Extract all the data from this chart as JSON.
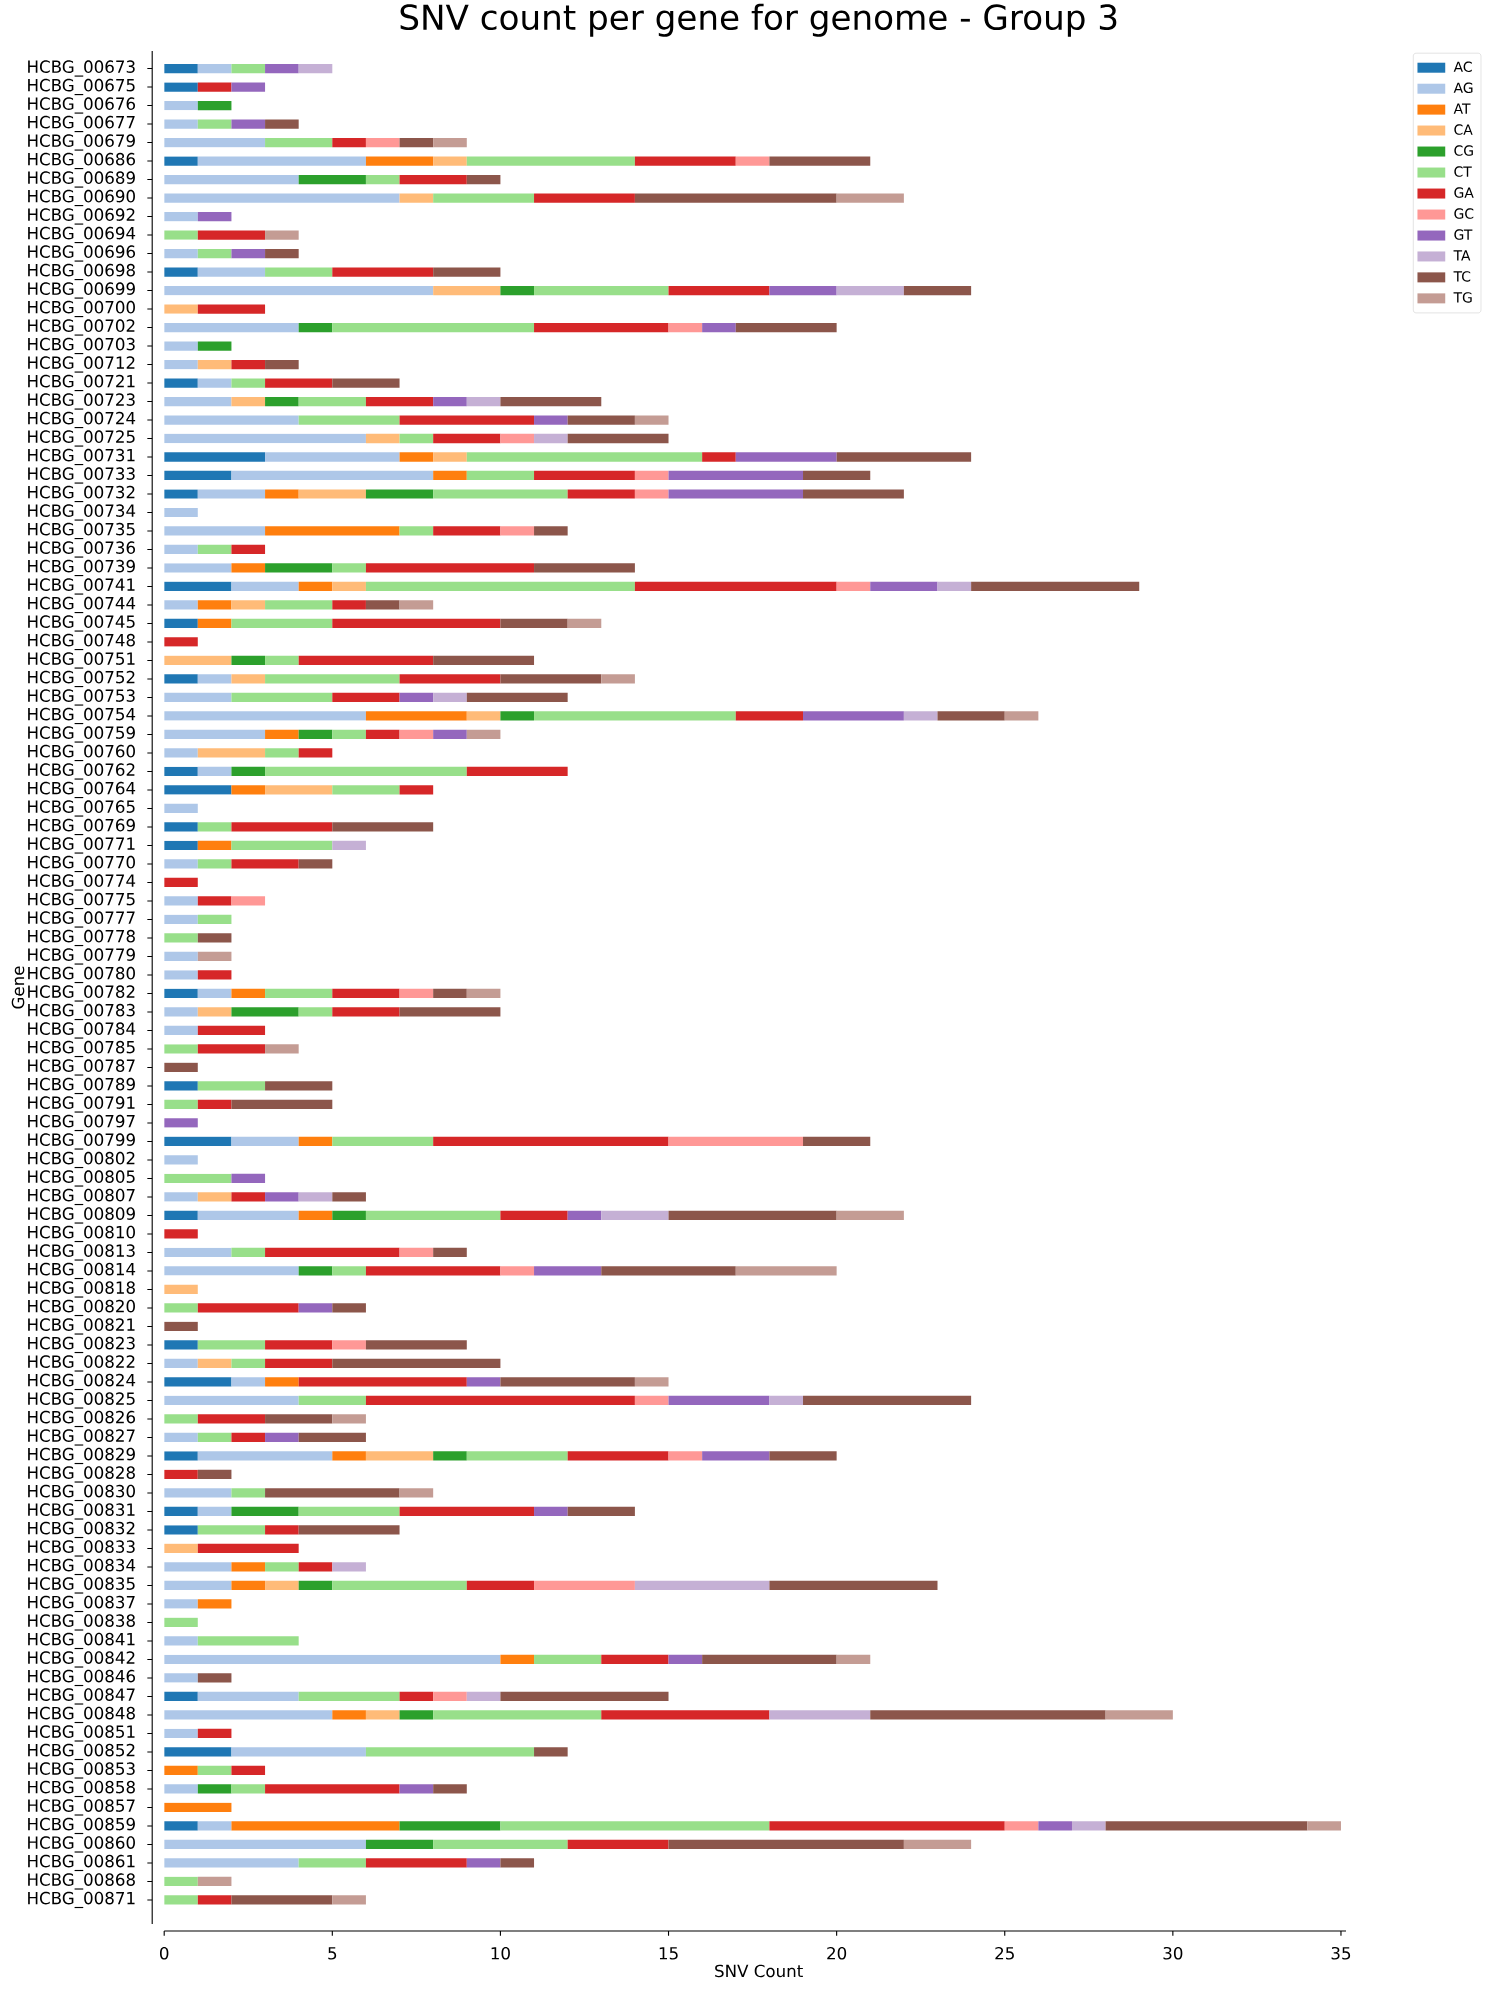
{
  "chart_data": {
    "type": "bar",
    "orientation": "horizontal",
    "stacked": true,
    "title": "SNV count per gene for genome - Group 3",
    "xlabel": "SNV Count",
    "ylabel": "Gene",
    "categories": [
      "HCBG_00673",
      "HCBG_00675",
      "HCBG_00676",
      "HCBG_00677",
      "HCBG_00679",
      "HCBG_00686",
      "HCBG_00689",
      "HCBG_00690",
      "HCBG_00692",
      "HCBG_00694",
      "HCBG_00696",
      "HCBG_00698",
      "HCBG_00699",
      "HCBG_00700",
      "HCBG_00702",
      "HCBG_00703",
      "HCBG_00712",
      "HCBG_00721",
      "HCBG_00723",
      "HCBG_00724",
      "HCBG_00725",
      "HCBG_00731",
      "HCBG_00733",
      "HCBG_00732",
      "HCBG_00734",
      "HCBG_00735",
      "HCBG_00736",
      "HCBG_00739",
      "HCBG_00741",
      "HCBG_00744",
      "HCBG_00745",
      "HCBG_00748",
      "HCBG_00751",
      "HCBG_00752",
      "HCBG_00753",
      "HCBG_00754",
      "HCBG_00759",
      "HCBG_00760",
      "HCBG_00762",
      "HCBG_00764",
      "HCBG_00765",
      "HCBG_00769",
      "HCBG_00771",
      "HCBG_00770",
      "HCBG_00774",
      "HCBG_00775",
      "HCBG_00777",
      "HCBG_00778",
      "HCBG_00779",
      "HCBG_00780",
      "HCBG_00782",
      "HCBG_00783",
      "HCBG_00784",
      "HCBG_00785",
      "HCBG_00787",
      "HCBG_00789",
      "HCBG_00791",
      "HCBG_00797",
      "HCBG_00799",
      "HCBG_00802",
      "HCBG_00805",
      "HCBG_00807",
      "HCBG_00809",
      "HCBG_00810",
      "HCBG_00813",
      "HCBG_00814",
      "HCBG_00818",
      "HCBG_00820",
      "HCBG_00821",
      "HCBG_00823",
      "HCBG_00822",
      "HCBG_00824",
      "HCBG_00825",
      "HCBG_00826",
      "HCBG_00827",
      "HCBG_00829",
      "HCBG_00828",
      "HCBG_00830",
      "HCBG_00831",
      "HCBG_00832",
      "HCBG_00833",
      "HCBG_00834",
      "HCBG_00835",
      "HCBG_00837",
      "HCBG_00838",
      "HCBG_00841",
      "HCBG_00842",
      "HCBG_00846",
      "HCBG_00847",
      "HCBG_00848",
      "HCBG_00851",
      "HCBG_00852",
      "HCBG_00853",
      "HCBG_00858",
      "HCBG_00857",
      "HCBG_00859",
      "HCBG_00860",
      "HCBG_00861",
      "HCBG_00868",
      "HCBG_00871"
    ],
    "series": [
      {
        "name": "AC",
        "color": "#1f77b4",
        "values": [
          1,
          1,
          0,
          0,
          0,
          1,
          0,
          0,
          0,
          0,
          0,
          1,
          0,
          0,
          0,
          0,
          0,
          1,
          0,
          0,
          0,
          3,
          2,
          1,
          0,
          0,
          0,
          0,
          2,
          0,
          1,
          0,
          0,
          1,
          0,
          0,
          0,
          0,
          1,
          2,
          0,
          1,
          1,
          0,
          0,
          0,
          0,
          0,
          0,
          0,
          1,
          0,
          0,
          0,
          0,
          1,
          0,
          0,
          2,
          0,
          0,
          0,
          1,
          0,
          0,
          0,
          0,
          0,
          0,
          1,
          0,
          2,
          0,
          0,
          0,
          1,
          0,
          0,
          1,
          1,
          0,
          0,
          0,
          0,
          0,
          0,
          0,
          0,
          1,
          0,
          0,
          2,
          0,
          0,
          0,
          1,
          0,
          0,
          0,
          0
        ]
      },
      {
        "name": "AG",
        "color": "#aec7e8",
        "values": [
          1,
          0,
          1,
          1,
          3,
          5,
          4,
          7,
          1,
          0,
          1,
          2,
          8,
          0,
          4,
          1,
          1,
          1,
          2,
          4,
          6,
          4,
          6,
          2,
          1,
          3,
          1,
          2,
          2,
          1,
          0,
          0,
          0,
          1,
          2,
          6,
          3,
          1,
          1,
          0,
          1,
          0,
          0,
          1,
          0,
          1,
          1,
          0,
          1,
          1,
          1,
          1,
          1,
          0,
          0,
          0,
          0,
          0,
          2,
          1,
          0,
          1,
          3,
          0,
          2,
          4,
          0,
          0,
          0,
          0,
          1,
          1,
          4,
          0,
          1,
          4,
          0,
          2,
          1,
          0,
          0,
          2,
          2,
          1,
          0,
          1,
          10,
          1,
          3,
          5,
          1,
          4,
          0,
          1,
          0,
          1,
          6,
          4,
          0,
          0
        ]
      },
      {
        "name": "AT",
        "color": "#ff7f0e",
        "values": [
          0,
          0,
          0,
          0,
          0,
          2,
          0,
          0,
          0,
          0,
          0,
          0,
          0,
          0,
          0,
          0,
          0,
          0,
          0,
          0,
          0,
          1,
          1,
          1,
          0,
          4,
          0,
          1,
          1,
          1,
          1,
          0,
          0,
          0,
          0,
          3,
          1,
          0,
          0,
          1,
          0,
          0,
          1,
          0,
          0,
          0,
          0,
          0,
          0,
          0,
          1,
          0,
          0,
          0,
          0,
          0,
          0,
          0,
          1,
          0,
          0,
          0,
          1,
          0,
          0,
          0,
          0,
          0,
          0,
          0,
          0,
          1,
          0,
          0,
          0,
          1,
          0,
          0,
          0,
          0,
          0,
          1,
          1,
          1,
          0,
          0,
          1,
          0,
          0,
          1,
          0,
          0,
          1,
          0,
          2,
          5,
          0,
          0,
          0,
          0
        ]
      },
      {
        "name": "CA",
        "color": "#ffbb78",
        "values": [
          0,
          0,
          0,
          0,
          0,
          1,
          0,
          1,
          0,
          0,
          0,
          0,
          2,
          1,
          0,
          0,
          1,
          0,
          1,
          0,
          1,
          1,
          0,
          2,
          0,
          0,
          0,
          0,
          1,
          1,
          0,
          0,
          2,
          1,
          0,
          1,
          0,
          2,
          0,
          2,
          0,
          0,
          0,
          0,
          0,
          0,
          0,
          0,
          0,
          0,
          0,
          1,
          0,
          0,
          0,
          0,
          0,
          0,
          0,
          0,
          0,
          1,
          0,
          0,
          0,
          0,
          1,
          0,
          0,
          0,
          1,
          0,
          0,
          0,
          0,
          2,
          0,
          0,
          0,
          0,
          1,
          0,
          1,
          0,
          0,
          0,
          0,
          0,
          0,
          1,
          0,
          0,
          0,
          0,
          0,
          0,
          0,
          0,
          0,
          0
        ]
      },
      {
        "name": "CG",
        "color": "#2ca02c",
        "values": [
          0,
          0,
          1,
          0,
          0,
          0,
          2,
          0,
          0,
          0,
          0,
          0,
          1,
          0,
          1,
          1,
          0,
          0,
          1,
          0,
          0,
          0,
          0,
          2,
          0,
          0,
          0,
          2,
          0,
          0,
          0,
          0,
          1,
          0,
          0,
          1,
          1,
          0,
          1,
          0,
          0,
          0,
          0,
          0,
          0,
          0,
          0,
          0,
          0,
          0,
          0,
          2,
          0,
          0,
          0,
          0,
          0,
          0,
          0,
          0,
          0,
          0,
          1,
          0,
          0,
          1,
          0,
          0,
          0,
          0,
          0,
          0,
          0,
          0,
          0,
          1,
          0,
          0,
          2,
          0,
          0,
          0,
          1,
          0,
          0,
          0,
          0,
          0,
          0,
          1,
          0,
          0,
          0,
          1,
          0,
          3,
          2,
          0,
          0,
          0
        ]
      },
      {
        "name": "CT",
        "color": "#98df8a",
        "values": [
          1,
          0,
          0,
          1,
          2,
          5,
          1,
          3,
          0,
          1,
          1,
          2,
          4,
          0,
          6,
          0,
          0,
          1,
          2,
          3,
          1,
          7,
          2,
          4,
          0,
          1,
          1,
          1,
          8,
          2,
          3,
          0,
          1,
          4,
          3,
          6,
          1,
          1,
          6,
          2,
          0,
          1,
          3,
          1,
          0,
          0,
          1,
          1,
          0,
          0,
          2,
          1,
          0,
          1,
          0,
          2,
          1,
          0,
          3,
          0,
          2,
          0,
          4,
          0,
          1,
          1,
          0,
          1,
          0,
          2,
          1,
          0,
          2,
          1,
          1,
          3,
          0,
          1,
          3,
          2,
          0,
          1,
          4,
          0,
          1,
          3,
          2,
          0,
          3,
          5,
          0,
          5,
          1,
          1,
          0,
          8,
          4,
          2,
          1,
          1
        ]
      },
      {
        "name": "GA",
        "color": "#d62728",
        "values": [
          0,
          1,
          0,
          0,
          1,
          3,
          2,
          3,
          0,
          2,
          0,
          3,
          3,
          2,
          4,
          0,
          1,
          2,
          2,
          4,
          2,
          1,
          3,
          2,
          0,
          2,
          1,
          5,
          6,
          1,
          5,
          1,
          4,
          3,
          2,
          2,
          1,
          1,
          3,
          1,
          0,
          3,
          0,
          2,
          1,
          1,
          0,
          0,
          0,
          1,
          2,
          2,
          2,
          2,
          0,
          0,
          1,
          0,
          7,
          0,
          0,
          1,
          2,
          1,
          4,
          4,
          0,
          3,
          0,
          2,
          2,
          5,
          8,
          2,
          1,
          3,
          1,
          0,
          4,
          1,
          3,
          1,
          2,
          0,
          0,
          0,
          2,
          0,
          1,
          5,
          1,
          0,
          1,
          4,
          0,
          7,
          3,
          3,
          0,
          1
        ]
      },
      {
        "name": "GC",
        "color": "#ff9896",
        "values": [
          0,
          0,
          0,
          0,
          1,
          1,
          0,
          0,
          0,
          0,
          0,
          0,
          0,
          0,
          1,
          0,
          0,
          0,
          0,
          0,
          1,
          0,
          1,
          1,
          0,
          1,
          0,
          0,
          1,
          0,
          0,
          0,
          0,
          0,
          0,
          0,
          1,
          0,
          0,
          0,
          0,
          0,
          0,
          0,
          0,
          1,
          0,
          0,
          0,
          0,
          1,
          0,
          0,
          0,
          0,
          0,
          0,
          0,
          4,
          0,
          0,
          0,
          0,
          0,
          1,
          1,
          0,
          0,
          0,
          1,
          0,
          0,
          1,
          0,
          0,
          1,
          0,
          0,
          0,
          0,
          0,
          0,
          3,
          0,
          0,
          0,
          0,
          0,
          1,
          0,
          0,
          0,
          0,
          0,
          0,
          1,
          0,
          0,
          0,
          0
        ]
      },
      {
        "name": "GT",
        "color": "#9467bd",
        "values": [
          1,
          1,
          0,
          1,
          0,
          0,
          0,
          0,
          1,
          0,
          1,
          0,
          2,
          0,
          1,
          0,
          0,
          0,
          1,
          1,
          0,
          3,
          4,
          4,
          0,
          0,
          0,
          0,
          2,
          0,
          0,
          0,
          0,
          0,
          1,
          3,
          1,
          0,
          0,
          0,
          0,
          0,
          0,
          0,
          0,
          0,
          0,
          0,
          0,
          0,
          0,
          0,
          0,
          0,
          0,
          0,
          0,
          1,
          0,
          0,
          1,
          1,
          1,
          0,
          0,
          2,
          0,
          1,
          0,
          0,
          0,
          1,
          3,
          0,
          1,
          2,
          0,
          0,
          1,
          0,
          0,
          0,
          0,
          0,
          0,
          0,
          1,
          0,
          0,
          0,
          0,
          0,
          0,
          1,
          0,
          1,
          0,
          1,
          0,
          0
        ]
      },
      {
        "name": "TA",
        "color": "#c5b0d5",
        "values": [
          1,
          0,
          0,
          0,
          0,
          0,
          0,
          0,
          0,
          0,
          0,
          0,
          2,
          0,
          0,
          0,
          0,
          0,
          1,
          0,
          1,
          0,
          0,
          0,
          0,
          0,
          0,
          0,
          1,
          0,
          0,
          0,
          0,
          0,
          1,
          1,
          0,
          0,
          0,
          0,
          0,
          0,
          1,
          0,
          0,
          0,
          0,
          0,
          0,
          0,
          0,
          0,
          0,
          0,
          0,
          0,
          0,
          0,
          0,
          0,
          0,
          1,
          2,
          0,
          0,
          0,
          0,
          0,
          0,
          0,
          0,
          0,
          1,
          0,
          0,
          0,
          0,
          0,
          0,
          0,
          0,
          1,
          4,
          0,
          0,
          0,
          0,
          0,
          1,
          3,
          0,
          0,
          0,
          0,
          0,
          1,
          0,
          0,
          0,
          0
        ]
      },
      {
        "name": "TC",
        "color": "#8c564b",
        "values": [
          0,
          0,
          0,
          1,
          1,
          3,
          1,
          6,
          0,
          0,
          1,
          2,
          2,
          0,
          3,
          0,
          1,
          2,
          3,
          2,
          3,
          4,
          2,
          3,
          0,
          1,
          0,
          3,
          5,
          1,
          2,
          0,
          3,
          3,
          3,
          2,
          0,
          0,
          0,
          0,
          0,
          3,
          0,
          1,
          0,
          0,
          0,
          1,
          0,
          0,
          1,
          3,
          0,
          0,
          1,
          2,
          3,
          0,
          2,
          0,
          0,
          1,
          5,
          0,
          1,
          4,
          0,
          1,
          1,
          3,
          5,
          4,
          5,
          2,
          2,
          2,
          1,
          4,
          2,
          3,
          0,
          0,
          5,
          0,
          0,
          0,
          4,
          1,
          5,
          7,
          0,
          1,
          0,
          1,
          0,
          6,
          7,
          1,
          0,
          3
        ]
      },
      {
        "name": "TG",
        "color": "#c49c94",
        "values": [
          0,
          0,
          0,
          0,
          1,
          0,
          0,
          2,
          0,
          1,
          0,
          0,
          0,
          0,
          0,
          0,
          0,
          0,
          0,
          1,
          0,
          0,
          0,
          0,
          0,
          0,
          0,
          0,
          0,
          1,
          1,
          0,
          0,
          1,
          0,
          1,
          1,
          0,
          0,
          0,
          0,
          0,
          0,
          0,
          0,
          0,
          0,
          0,
          1,
          0,
          1,
          0,
          0,
          1,
          0,
          0,
          0,
          0,
          0,
          0,
          0,
          0,
          2,
          0,
          0,
          3,
          0,
          0,
          0,
          0,
          0,
          1,
          0,
          1,
          0,
          0,
          0,
          1,
          0,
          0,
          0,
          0,
          0,
          0,
          0,
          0,
          1,
          0,
          0,
          2,
          0,
          0,
          0,
          0,
          0,
          1,
          2,
          0,
          1,
          1
        ]
      }
    ],
    "xlim": [
      0,
      35.15
    ],
    "xticks": [
      0,
      5,
      10,
      15,
      20,
      25,
      30,
      35
    ],
    "legend": "top right"
  }
}
